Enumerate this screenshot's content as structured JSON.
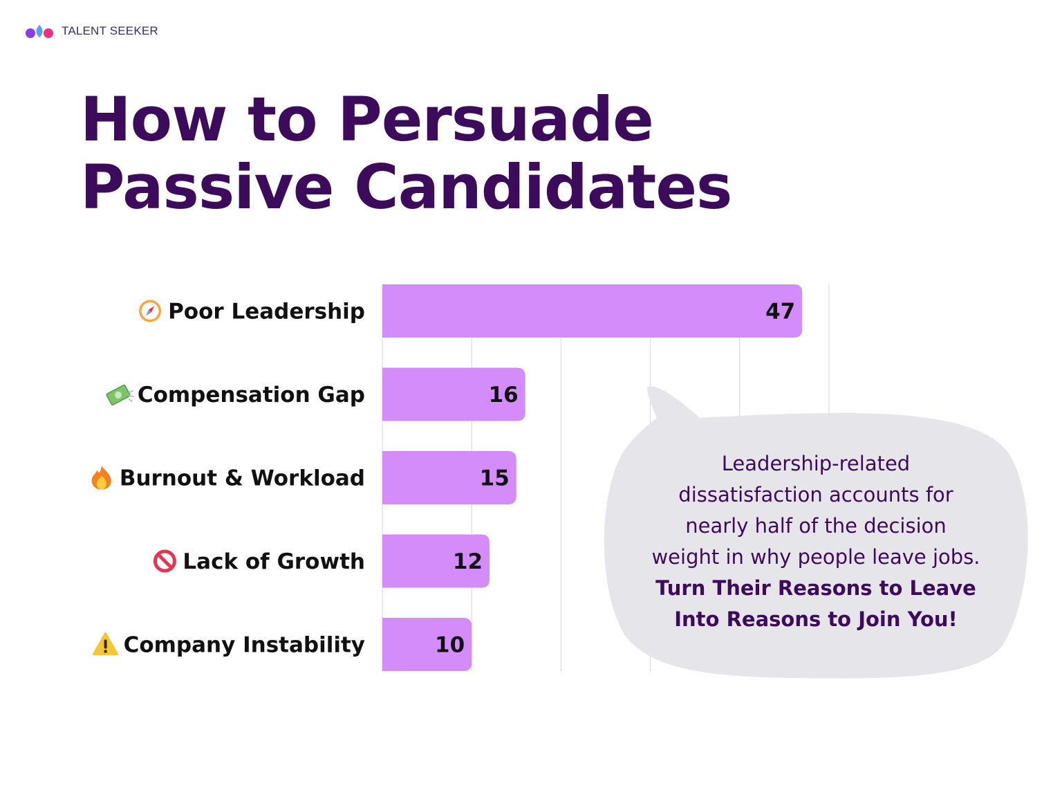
{
  "brand": {
    "name": "TALENT SEEKER"
  },
  "title": {
    "line1": "How to Persuade",
    "line2": "Passive Candidates"
  },
  "colors": {
    "bar": "#d48cfb",
    "title": "#3d0b5c",
    "bubble": "#e6e5ea",
    "grid": "#dcdcdc"
  },
  "chart_data": {
    "type": "bar",
    "orientation": "horizontal",
    "categories": [
      "Poor Leadership",
      "Compensation Gap",
      "Burnout & Workload",
      "Lack of Growth",
      "Company Instability"
    ],
    "icons": [
      "compass-icon",
      "money-icon",
      "fire-icon",
      "no-entry-icon",
      "warning-icon"
    ],
    "values": [
      47,
      16,
      15,
      12,
      10
    ],
    "xlim": [
      0,
      50
    ],
    "grid": true,
    "data_labels": true
  },
  "callout": {
    "lines": [
      "Leadership-related",
      "dissatisfaction accounts for",
      "nearly half of the decision",
      "weight in why people leave jobs."
    ],
    "emphasis": [
      "Turn Their Reasons to Leave",
      "Into Reasons to Join You!"
    ]
  }
}
